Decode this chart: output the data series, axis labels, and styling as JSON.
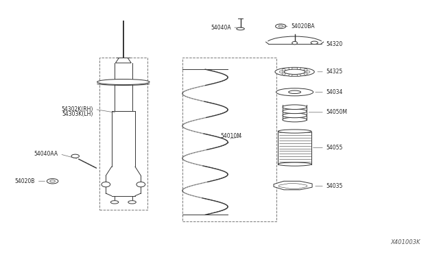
{
  "bg_color": "#ffffff",
  "lc": "#333333",
  "diagram_id": "X401003K",
  "figsize": [
    6.4,
    3.72
  ],
  "dpi": 100,
  "labels": {
    "54040A": [
      0.522,
      0.895,
      0.56,
      0.895
    ],
    "54020BA": [
      0.76,
      0.895,
      0.72,
      0.895
    ],
    "54320": [
      0.76,
      0.8,
      0.71,
      0.8
    ],
    "54325": [
      0.76,
      0.695,
      0.7,
      0.695
    ],
    "54034": [
      0.76,
      0.61,
      0.7,
      0.61
    ],
    "54050M": [
      0.76,
      0.53,
      0.685,
      0.53
    ],
    "54010M": [
      0.555,
      0.47,
      0.53,
      0.47
    ],
    "54055": [
      0.76,
      0.39,
      0.7,
      0.39
    ],
    "54035": [
      0.76,
      0.27,
      0.69,
      0.27
    ],
    "54302K(RH)": [
      0.195,
      0.565,
      0.27,
      0.557
    ],
    "54303K(LH)": [
      0.195,
      0.545,
      0.27,
      0.545
    ],
    "54040AA": [
      0.11,
      0.4,
      0.17,
      0.39
    ],
    "54020B": [
      0.082,
      0.29,
      0.115,
      0.285
    ]
  }
}
